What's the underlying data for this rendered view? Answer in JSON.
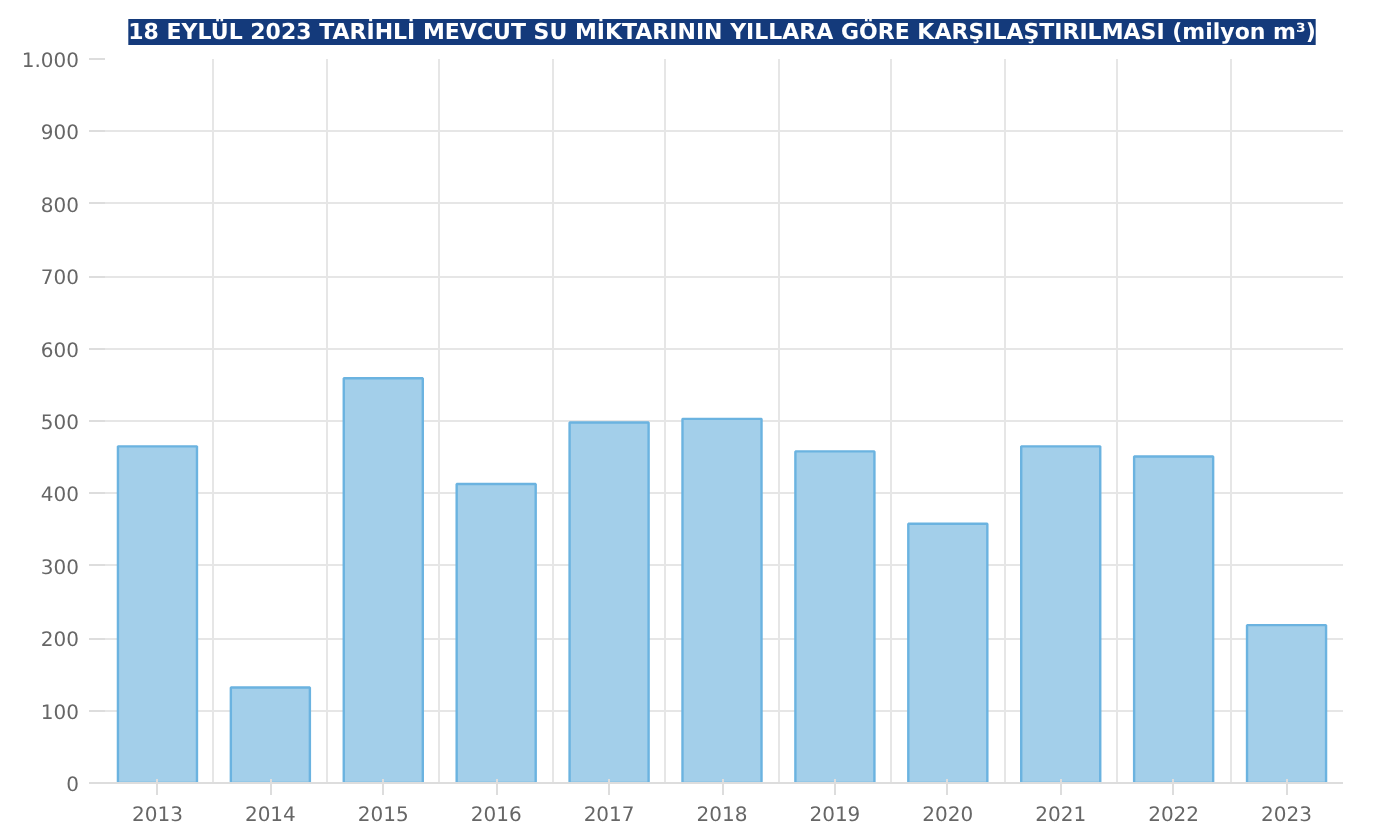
{
  "chart_data": {
    "type": "bar",
    "title": "18 EYLÜL 2023 TARİHLİ MEVCUT SU MİKTARININ YILLARA GÖRE KARŞILAŞTIRILMASI (milyon m³)",
    "categories": [
      "2013",
      "2014",
      "2015",
      "2016",
      "2017",
      "2018",
      "2019",
      "2020",
      "2021",
      "2022",
      "2023"
    ],
    "values": [
      465,
      132,
      559,
      413,
      498,
      503,
      458,
      358,
      465,
      451,
      218
    ],
    "color": "#a3cfea",
    "ylim": [
      0,
      1000
    ],
    "yticks": [
      0,
      100,
      200,
      300,
      400,
      500,
      600,
      700,
      800,
      900,
      {
        "value": 1000,
        "label": "1.000"
      }
    ],
    "grid": true
  }
}
